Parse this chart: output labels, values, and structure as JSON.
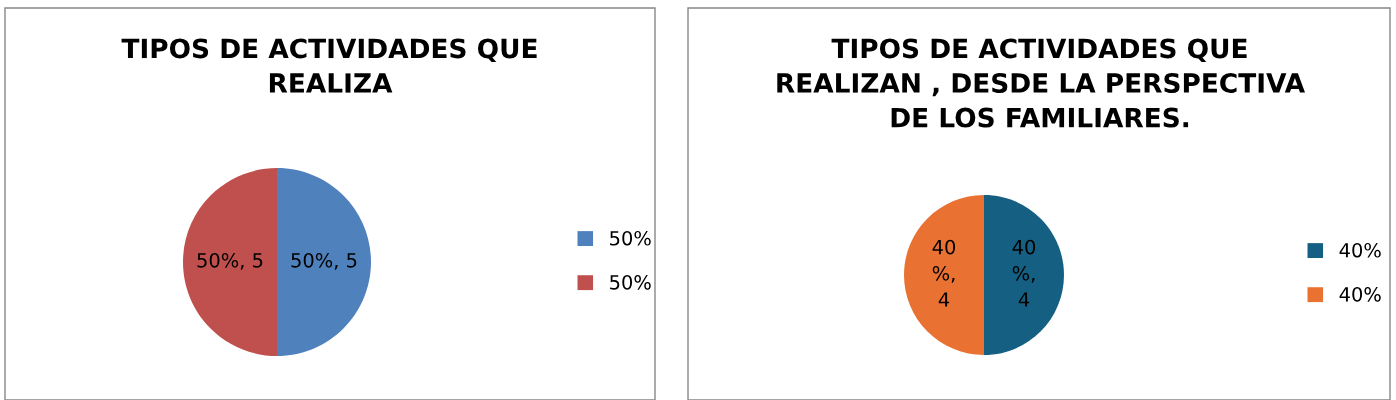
{
  "chart_data": [
    {
      "type": "pie",
      "title": "TIPOS DE ACTIVIDADES QUE\nREALIZA",
      "categories": [
        "50%",
        "50%"
      ],
      "values": [
        5,
        5
      ],
      "colors": [
        "#4f81bd",
        "#c0504d"
      ],
      "value_labels": [
        "50%, 5",
        "50%, 5"
      ],
      "legend": "right"
    },
    {
      "type": "pie",
      "title": "TIPOS DE ACTIVIDADES QUE\nREALIZAN , DESDE LA PERSPECTIVA\nDE LOS FAMILIARES.",
      "categories": [
        "40%",
        "40%"
      ],
      "values": [
        4,
        4
      ],
      "colors": [
        "#156082",
        "#e97132"
      ],
      "value_labels": [
        "40%, 4",
        "40%, 4"
      ],
      "legend": "right"
    }
  ]
}
